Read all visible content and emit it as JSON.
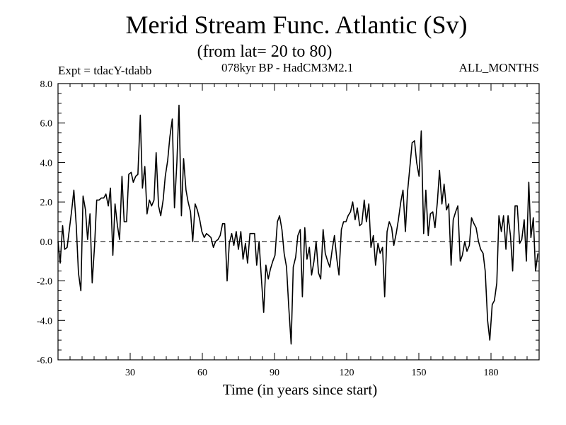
{
  "chart_data": {
    "type": "line",
    "title": "Merid Stream Func. Atlantic (Sv)",
    "subtitle": "(from lat= 20 to 80)",
    "annotations": {
      "left": "Expt = tdacY-tdabb",
      "center": "078kyr BP - HadCM3M2.1",
      "right": "ALL_MONTHS"
    },
    "xlabel": "Time (in years since start)",
    "ylabel": "",
    "xlim": [
      0,
      200
    ],
    "ylim": [
      -6.0,
      8.0
    ],
    "xticks": [
      30,
      60,
      90,
      120,
      150,
      180
    ],
    "xtick_labels": [
      "30",
      "60",
      "90",
      "120",
      "150",
      "180"
    ],
    "yticks": [
      -6.0,
      -4.0,
      -2.0,
      0.0,
      2.0,
      4.0,
      6.0,
      8.0
    ],
    "ytick_labels": [
      "-6.0",
      "-4.0",
      "-2.0",
      "0.0",
      "2.0",
      "4.0",
      "6.0",
      "8.0"
    ],
    "reference_line": {
      "y": 0.0,
      "style": "dashed"
    },
    "series": [
      {
        "name": "Merid Stream Func.",
        "points": [
          [
            0,
            0.0
          ],
          [
            0.9,
            -1.1
          ],
          [
            1.9,
            0.8
          ],
          [
            2.8,
            -0.4
          ],
          [
            3.8,
            -0.3
          ],
          [
            4.7,
            0.6
          ],
          [
            5.7,
            1.6
          ],
          [
            6.6,
            2.6
          ],
          [
            7.6,
            0.8
          ],
          [
            8.5,
            -1.6
          ],
          [
            9.5,
            -2.5
          ],
          [
            10.4,
            2.3
          ],
          [
            11.4,
            1.6
          ],
          [
            12.3,
            0.1
          ],
          [
            13.3,
            1.4
          ],
          [
            14.2,
            -2.1
          ],
          [
            15.2,
            -0.2
          ],
          [
            16.1,
            2.1
          ],
          [
            17.1,
            2.1
          ],
          [
            18,
            2.2
          ],
          [
            19,
            2.2
          ],
          [
            19.9,
            2.4
          ],
          [
            20.9,
            1.8
          ],
          [
            21.8,
            2.7
          ],
          [
            22.8,
            -0.7
          ],
          [
            23.7,
            1.9
          ],
          [
            24.7,
            0.8
          ],
          [
            25.6,
            0.1
          ],
          [
            26.6,
            3.3
          ],
          [
            27.5,
            1.0
          ],
          [
            28.5,
            1.0
          ],
          [
            29.4,
            3.4
          ],
          [
            30.4,
            3.5
          ],
          [
            31.3,
            3.0
          ],
          [
            32.3,
            3.3
          ],
          [
            33.2,
            3.4
          ],
          [
            34.2,
            6.4
          ],
          [
            35.1,
            2.7
          ],
          [
            36.1,
            3.8
          ],
          [
            37,
            1.4
          ],
          [
            38,
            2.1
          ],
          [
            38.9,
            1.8
          ],
          [
            39.9,
            2.1
          ],
          [
            40.8,
            4.5
          ],
          [
            41.8,
            1.8
          ],
          [
            42.7,
            1.3
          ],
          [
            43.7,
            2.1
          ],
          [
            44.6,
            3.3
          ],
          [
            45.6,
            4.1
          ],
          [
            46.5,
            5.3
          ],
          [
            47.5,
            6.2
          ],
          [
            48.4,
            1.7
          ],
          [
            49.4,
            4.0
          ],
          [
            50.3,
            6.9
          ],
          [
            51.3,
            1.3
          ],
          [
            52.2,
            4.2
          ],
          [
            53.2,
            2.6
          ],
          [
            54.1,
            2.0
          ],
          [
            55.1,
            1.5
          ],
          [
            56,
            0.0
          ],
          [
            57,
            1.9
          ],
          [
            57.9,
            1.6
          ],
          [
            58.9,
            1.1
          ],
          [
            59.8,
            0.5
          ],
          [
            60.8,
            0.2
          ],
          [
            61.7,
            0.4
          ],
          [
            62.7,
            0.3
          ],
          [
            63.6,
            0.2
          ],
          [
            64.6,
            -0.3
          ],
          [
            65.5,
            0.0
          ],
          [
            66.5,
            0.1
          ],
          [
            67.4,
            0.3
          ],
          [
            68.4,
            0.9
          ],
          [
            69.3,
            0.9
          ],
          [
            70.3,
            -2.0
          ],
          [
            71.2,
            -0.1
          ],
          [
            72.2,
            0.4
          ],
          [
            73.1,
            -0.2
          ],
          [
            74.1,
            0.5
          ],
          [
            75,
            -0.4
          ],
          [
            76,
            0.5
          ],
          [
            76.9,
            -0.9
          ],
          [
            77.9,
            -0.1
          ],
          [
            78.8,
            -1.1
          ],
          [
            79.8,
            0.4
          ],
          [
            80.7,
            0.4
          ],
          [
            81.7,
            0.4
          ],
          [
            82.6,
            -1.2
          ],
          [
            83.6,
            0.0
          ],
          [
            84.5,
            -1.8
          ],
          [
            85.5,
            -3.6
          ],
          [
            86.4,
            -1.2
          ],
          [
            87.4,
            -1.9
          ],
          [
            88.3,
            -1.4
          ],
          [
            89.3,
            -1.0
          ],
          [
            90.2,
            -0.7
          ],
          [
            91.2,
            1.0
          ],
          [
            92.1,
            1.3
          ],
          [
            93.1,
            0.6
          ],
          [
            94,
            -0.6
          ],
          [
            95,
            -1.3
          ],
          [
            95.9,
            -3.3
          ],
          [
            96.9,
            -5.2
          ],
          [
            97.8,
            -1.3
          ],
          [
            98.8,
            -0.8
          ],
          [
            99.7,
            0.3
          ],
          [
            100.7,
            0.6
          ],
          [
            101.6,
            -2.8
          ],
          [
            102.6,
            0.7
          ],
          [
            103.5,
            -0.9
          ],
          [
            104.5,
            -0.3
          ],
          [
            105.4,
            -1.7
          ],
          [
            106.4,
            -1.0
          ],
          [
            107.3,
            0.0
          ],
          [
            108.3,
            -1.6
          ],
          [
            109.2,
            -1.9
          ],
          [
            110.2,
            0.6
          ],
          [
            111.1,
            -0.6
          ],
          [
            112.1,
            -1.0
          ],
          [
            113,
            -1.3
          ],
          [
            114,
            -0.4
          ],
          [
            114.9,
            0.3
          ],
          [
            115.9,
            -0.9
          ],
          [
            116.8,
            -1.7
          ],
          [
            117.8,
            0.6
          ],
          [
            118.7,
            1.0
          ],
          [
            119.7,
            1.0
          ],
          [
            120.6,
            1.3
          ],
          [
            121.6,
            1.5
          ],
          [
            122.5,
            2.0
          ],
          [
            123.5,
            1.1
          ],
          [
            124.4,
            1.7
          ],
          [
            125.4,
            0.8
          ],
          [
            126.3,
            0.9
          ],
          [
            127.3,
            2.1
          ],
          [
            128.2,
            1.0
          ],
          [
            129.2,
            1.9
          ],
          [
            130.1,
            -0.3
          ],
          [
            131.1,
            0.3
          ],
          [
            132,
            -1.2
          ],
          [
            133,
            -0.1
          ],
          [
            133.9,
            -0.6
          ],
          [
            134.9,
            -0.3
          ],
          [
            135.8,
            -2.8
          ],
          [
            136.8,
            0.5
          ],
          [
            137.7,
            1.0
          ],
          [
            138.7,
            0.7
          ],
          [
            139.6,
            -0.2
          ],
          [
            140.6,
            0.4
          ],
          [
            141.5,
            1.1
          ],
          [
            142.5,
            2.0
          ],
          [
            143.4,
            2.6
          ],
          [
            144.4,
            0.5
          ],
          [
            145.3,
            2.5
          ],
          [
            146.3,
            3.8
          ],
          [
            147.2,
            5.0
          ],
          [
            148.2,
            5.1
          ],
          [
            149.1,
            4.0
          ],
          [
            150.1,
            3.3
          ],
          [
            151,
            5.6
          ],
          [
            152,
            0.4
          ],
          [
            152.9,
            2.6
          ],
          [
            153.9,
            0.3
          ],
          [
            154.8,
            1.4
          ],
          [
            155.8,
            1.5
          ],
          [
            156.7,
            0.7
          ],
          [
            157.7,
            2.0
          ],
          [
            158.6,
            3.6
          ],
          [
            159.6,
            1.9
          ],
          [
            160.5,
            2.9
          ],
          [
            161.5,
            1.6
          ],
          [
            162.4,
            1.9
          ],
          [
            163.4,
            -1.2
          ],
          [
            164.3,
            1.1
          ],
          [
            165.3,
            1.5
          ],
          [
            166.2,
            1.8
          ],
          [
            167.2,
            -1.0
          ],
          [
            168.1,
            -0.7
          ],
          [
            169.1,
            0.0
          ],
          [
            170,
            -0.5
          ],
          [
            171,
            -0.2
          ],
          [
            171.9,
            1.2
          ],
          [
            172.9,
            0.9
          ],
          [
            173.8,
            0.7
          ],
          [
            174.8,
            0.0
          ],
          [
            175.7,
            -0.4
          ],
          [
            176.7,
            -0.6
          ],
          [
            177.6,
            -1.5
          ],
          [
            178.6,
            -4.0
          ],
          [
            179.5,
            -5.0
          ],
          [
            180.5,
            -3.2
          ],
          [
            181.4,
            -3.0
          ],
          [
            182.4,
            -2.1
          ],
          [
            183.3,
            1.3
          ],
          [
            184.3,
            0.5
          ],
          [
            185.2,
            1.3
          ],
          [
            186.2,
            -0.4
          ],
          [
            187.1,
            1.3
          ],
          [
            188.1,
            0.3
          ],
          [
            189,
            -1.5
          ],
          [
            190,
            1.8
          ],
          [
            190.9,
            1.8
          ],
          [
            191.9,
            -0.1
          ],
          [
            192.8,
            0.1
          ],
          [
            193.8,
            1.1
          ],
          [
            194.7,
            -1.0
          ],
          [
            195.7,
            3.0
          ],
          [
            196.6,
            0.2
          ],
          [
            197.6,
            1.2
          ],
          [
            198.5,
            -1.5
          ],
          [
            199.5,
            -0.6
          ]
        ]
      }
    ]
  }
}
